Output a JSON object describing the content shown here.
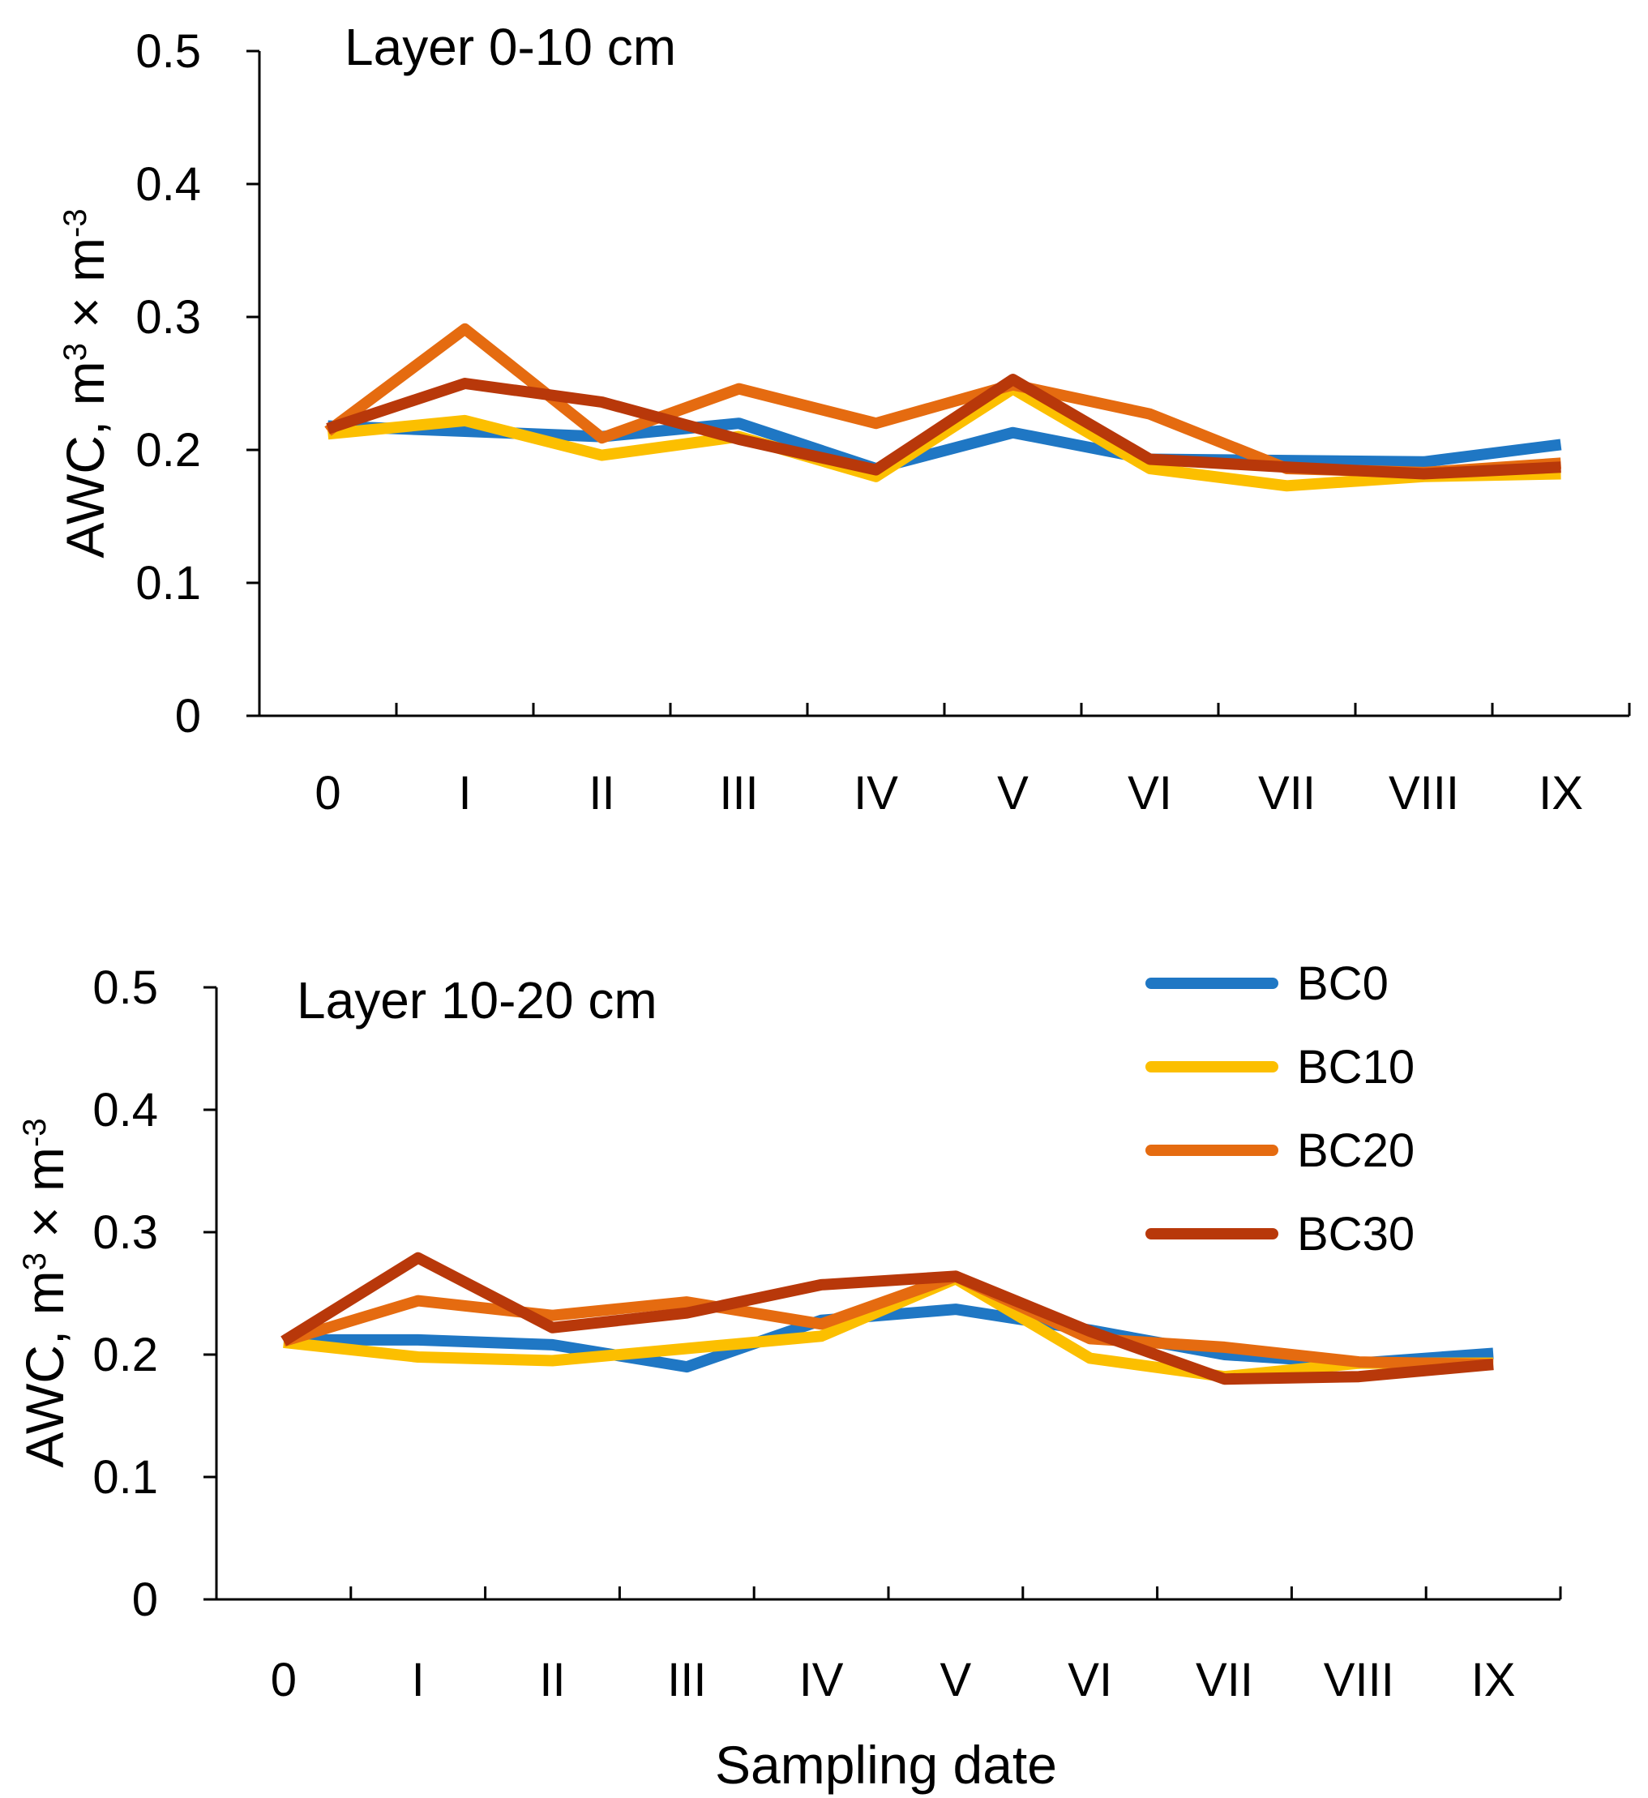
{
  "chart_data": [
    {
      "type": "line",
      "title": "Layer 0-10 cm",
      "ylabel": "AWC, m3 × m-3",
      "ylabel_parts": [
        "AWC, m",
        "3",
        " × m",
        "-3"
      ],
      "xlabel": "",
      "ylim": [
        0,
        0.5
      ],
      "yticks": [
        "0",
        "0.1",
        "0.2",
        "0.3",
        "0.4",
        "0.5"
      ],
      "categories": [
        "0",
        "I",
        "II",
        "III",
        "IV",
        "V",
        "VI",
        "VII",
        "VIII",
        "IX"
      ],
      "grid": false,
      "series": [
        {
          "name": "BC0",
          "color": "#1f77c4",
          "values": [
            0.218,
            0.214,
            0.21,
            0.22,
            0.186,
            0.213,
            0.193,
            0.192,
            0.191,
            0.204
          ]
        },
        {
          "name": "BC10",
          "color": "#fcbf00",
          "values": [
            0.212,
            0.222,
            0.196,
            0.21,
            0.18,
            0.246,
            0.186,
            0.173,
            0.18,
            0.182
          ]
        },
        {
          "name": "BC20",
          "color": "#e56b10",
          "values": [
            0.214,
            0.291,
            0.209,
            0.246,
            0.22,
            0.249,
            0.227,
            0.186,
            0.183,
            0.19
          ]
        },
        {
          "name": "BC30",
          "color": "#b8380a",
          "values": [
            0.216,
            0.25,
            0.236,
            0.208,
            0.185,
            0.253,
            0.193,
            0.187,
            0.182,
            0.187
          ]
        }
      ]
    },
    {
      "type": "line",
      "title": "Layer 10-20 cm",
      "ylabel": "AWC, m3 × m-3",
      "ylabel_parts": [
        "AWC, m",
        "3",
        " × m",
        "-3"
      ],
      "xlabel": "Sampling date",
      "ylim": [
        0,
        0.5
      ],
      "yticks": [
        "0",
        "0.1",
        "0.2",
        "0.3",
        "0.4",
        "0.5"
      ],
      "categories": [
        "0",
        "I",
        "II",
        "III",
        "IV",
        "V",
        "VI",
        "VII",
        "VIII",
        "IX"
      ],
      "grid": false,
      "legend": {
        "placement": "top-right",
        "entries": [
          "BC0",
          "BC10",
          "BC20",
          "BC30"
        ]
      },
      "series": [
        {
          "name": "BC0",
          "color": "#1f77c4",
          "values": [
            0.212,
            0.212,
            0.208,
            0.19,
            0.228,
            0.237,
            0.22,
            0.2,
            0.193,
            0.201
          ]
        },
        {
          "name": "BC10",
          "color": "#fcbf00",
          "values": [
            0.21,
            0.198,
            0.195,
            0.205,
            0.215,
            0.262,
            0.197,
            0.182,
            0.193,
            0.193
          ]
        },
        {
          "name": "BC20",
          "color": "#e56b10",
          "values": [
            0.211,
            0.244,
            0.232,
            0.243,
            0.225,
            0.264,
            0.213,
            0.206,
            0.194,
            0.192
          ]
        },
        {
          "name": "BC30",
          "color": "#b8380a",
          "values": [
            0.211,
            0.279,
            0.222,
            0.234,
            0.257,
            0.264,
            0.219,
            0.18,
            0.182,
            0.192
          ]
        }
      ]
    }
  ]
}
